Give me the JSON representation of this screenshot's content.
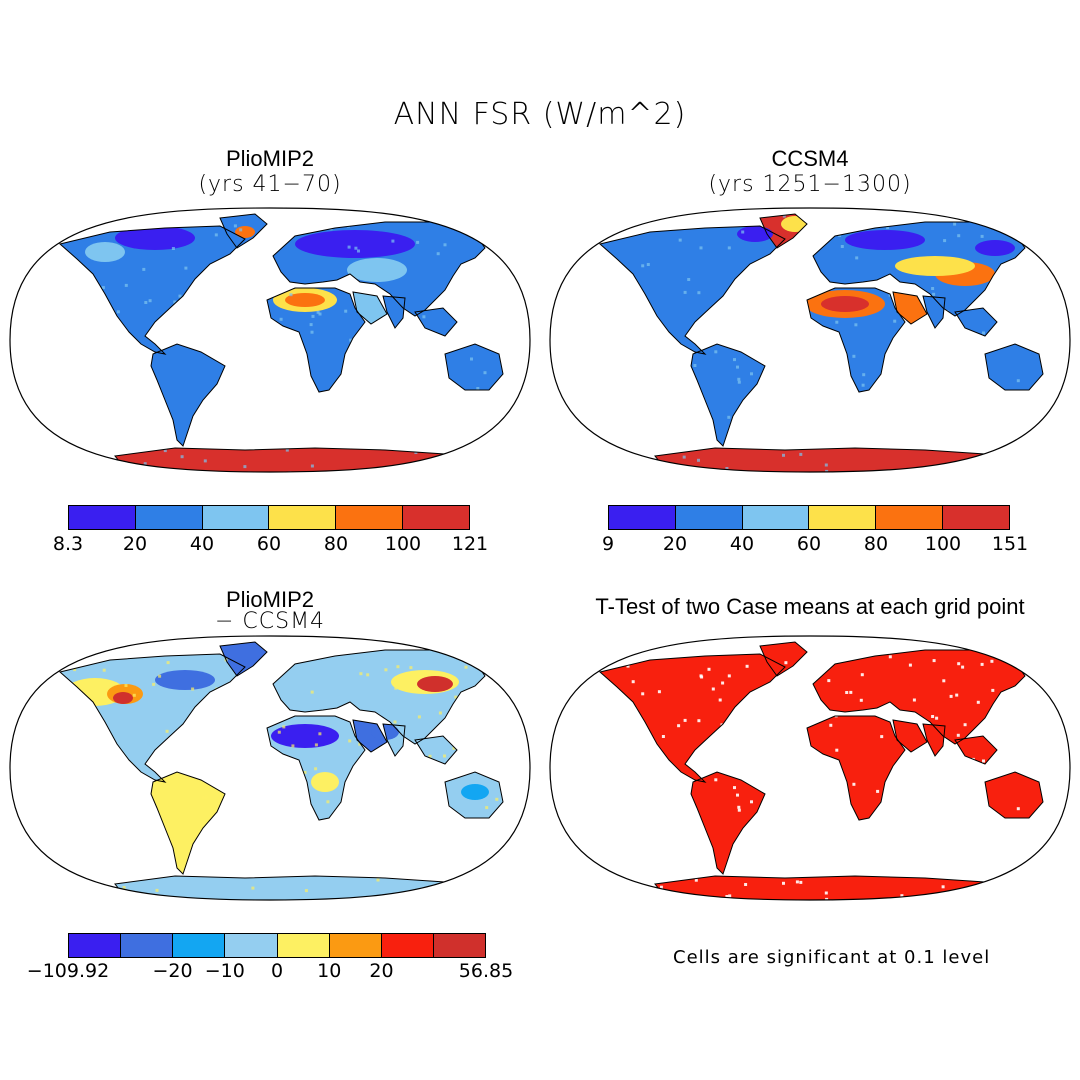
{
  "main_title": "ANN FSR (W/m^2)",
  "panels": [
    {
      "title": "PlioMIP2",
      "subtitle": "(yrs 41−70)",
      "colorbar": {
        "colors": [
          "#3a1ff0",
          "#2f7fe6",
          "#7ec5f0",
          "#fde14a",
          "#fb7210",
          "#d8302c"
        ],
        "labels": [
          "8.3",
          "20",
          "40",
          "60",
          "80",
          "100",
          "121"
        ]
      }
    },
    {
      "title": "CCSM4",
      "subtitle": "(yrs 1251−1300)",
      "colorbar": {
        "colors": [
          "#3a1ff0",
          "#2f7fe6",
          "#7ec5f0",
          "#fde14a",
          "#fb7210",
          "#d8302c"
        ],
        "labels": [
          "9",
          "20",
          "40",
          "60",
          "80",
          "100",
          "151"
        ]
      }
    },
    {
      "title": "PlioMIP2",
      "subtitle": "− CCSM4",
      "colorbar": {
        "colors": [
          "#3a1ff0",
          "#3f6fe0",
          "#13a6f2",
          "#94cef0",
          "#fdf062",
          "#fb9a12",
          "#f8200e",
          "#d0302c"
        ],
        "labels": [
          "−109.92",
          "",
          "−20",
          "−10",
          "0",
          "10",
          "20",
          "",
          "56.85"
        ]
      }
    },
    {
      "title": "T-Test of two Case means at each grid point",
      "note": "Cells are significant at 0.1 level"
    }
  ]
}
